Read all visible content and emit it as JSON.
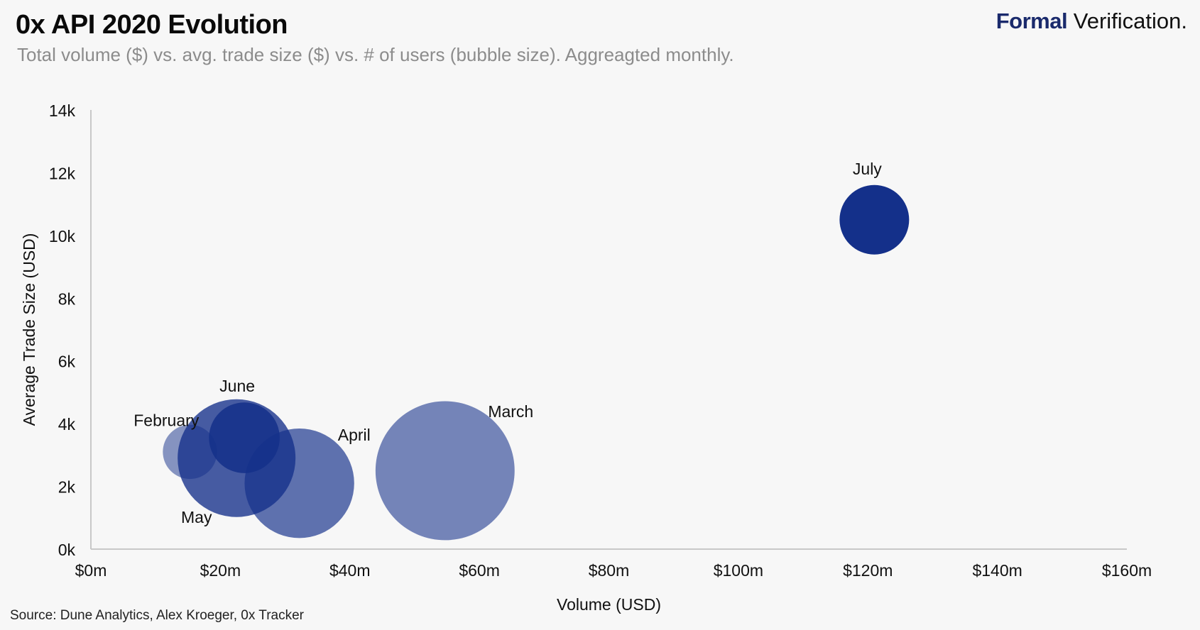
{
  "header": {
    "title": "0x API 2020 Evolution",
    "subtitle": "Total volume ($) vs. avg. trade size ($) vs. # of users (bubble size). Aggreagted monthly.",
    "brand_bold": "Formal",
    "brand_light": "Verification."
  },
  "footer": {
    "source": "Source: Dune Analytics, Alex Kroeger, 0x Tracker"
  },
  "colors": {
    "bubble": "#14308a",
    "axis": "#c8c8c8",
    "brand": "#1a2a6c"
  },
  "chart_data": {
    "type": "scatter",
    "variant": "bubble",
    "title": "0x API 2020 Evolution",
    "xlabel": "Volume (USD)",
    "ylabel": "Average Trade Size (USD)",
    "xlim": [
      0,
      160
    ],
    "ylim": [
      0,
      14000
    ],
    "x_ticks": [
      0,
      20,
      40,
      60,
      80,
      100,
      120,
      140,
      160
    ],
    "x_tick_labels": [
      "$0m",
      "$20m",
      "$40m",
      "$60m",
      "$80m",
      "$100m",
      "$120m",
      "$140m",
      "$160m"
    ],
    "y_ticks": [
      0,
      2000,
      4000,
      6000,
      8000,
      10000,
      12000,
      14000
    ],
    "y_tick_labels": [
      "0k",
      "2k",
      "4k",
      "6k",
      "8k",
      "10k",
      "12k",
      "14k"
    ],
    "grid": false,
    "series": [
      {
        "name": "February",
        "x": 15.3,
        "y": 3100,
        "size": 0.46,
        "opacity": 0.5,
        "label_pos": "top-left"
      },
      {
        "name": "March",
        "x": 54.7,
        "y": 2500,
        "size": 1.18,
        "opacity": 0.58,
        "label_pos": "top-right"
      },
      {
        "name": "April",
        "x": 32.2,
        "y": 2100,
        "size": 0.93,
        "opacity": 0.68,
        "label_pos": "top-right"
      },
      {
        "name": "May",
        "x": 22.5,
        "y": 2900,
        "size": 1.0,
        "opacity": 0.78,
        "label_pos": "bottom-left"
      },
      {
        "name": "June",
        "x": 23.7,
        "y": 3550,
        "size": 0.6,
        "opacity": 0.85,
        "label_pos": "top"
      },
      {
        "name": "July",
        "x": 121.0,
        "y": 10500,
        "size": 0.59,
        "opacity": 1.0,
        "label_pos": "top"
      }
    ]
  }
}
